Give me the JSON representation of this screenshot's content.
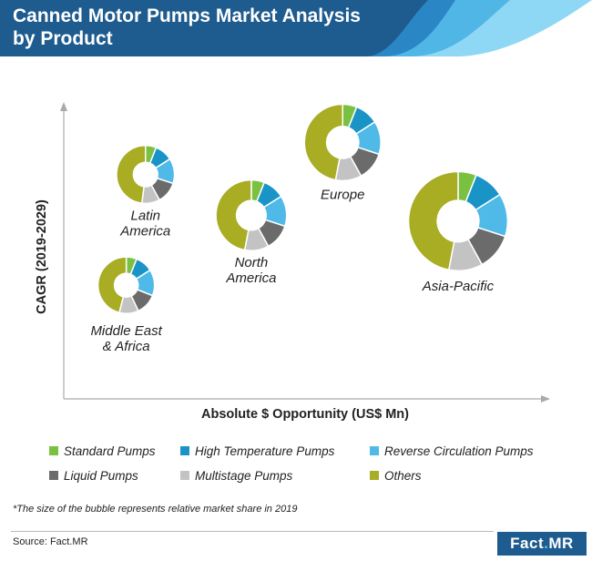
{
  "header": {
    "title_line1": "Canned Motor Pumps Market Analysis",
    "title_line2": "by Product"
  },
  "colors": {
    "banner": "#1e5b8e",
    "banner_accent_1": "#2a86c5",
    "banner_accent_2": "#4fb6e6",
    "banner_accent_3": "#8ed7f5"
  },
  "chart_data": {
    "type": "bubble-donut",
    "xlabel": "Absolute $ Opportunity (US$ Mn)",
    "ylabel": "CAGR (2019-2029)",
    "categories": [
      "Standard Pumps",
      "High Temperature Pumps",
      "Reverse Circulation Pumps",
      "Liquid Pumps",
      "Multistage Pumps",
      "Others"
    ],
    "category_colors": [
      "#7ac142",
      "#1a94c7",
      "#4fb9e8",
      "#6b6b6b",
      "#c3c3c3",
      "#a8ad24"
    ],
    "regions": [
      {
        "name": "Middle East & Africa",
        "label_lines": [
          "Middle East",
          "& Africa"
        ],
        "x": 1.3,
        "y": 3.9,
        "share": 0.09,
        "slices": [
          6,
          10,
          15,
          12,
          11,
          46
        ]
      },
      {
        "name": "Latin America",
        "label_lines": [
          "Latin",
          "America"
        ],
        "x": 1.7,
        "y": 7.7,
        "share": 0.1,
        "slices": [
          6,
          10,
          14,
          12,
          10,
          48
        ]
      },
      {
        "name": "North America",
        "label_lines": [
          "North",
          "America"
        ],
        "x": 3.9,
        "y": 6.3,
        "share": 0.19,
        "slices": [
          6,
          10,
          14,
          12,
          11,
          47
        ]
      },
      {
        "name": "Europe",
        "label_lines": [
          "Europe"
        ],
        "x": 5.8,
        "y": 8.8,
        "share": 0.23,
        "slices": [
          6,
          10,
          14,
          12,
          11,
          47
        ]
      },
      {
        "name": "Asia-Pacific",
        "label_lines": [
          "Asia-Pacific"
        ],
        "x": 8.2,
        "y": 6.1,
        "share": 0.39,
        "slices": [
          6,
          10,
          14,
          12,
          11,
          47
        ]
      }
    ]
  },
  "legend": {
    "items": [
      {
        "label": "Standard Pumps",
        "color": "#7ac142"
      },
      {
        "label": "High Temperature Pumps",
        "color": "#1a94c7"
      },
      {
        "label": "Reverse Circulation Pumps",
        "color": "#4fb9e8"
      },
      {
        "label": "Liquid Pumps",
        "color": "#6b6b6b"
      },
      {
        "label": "Multistage Pumps",
        "color": "#c3c3c3"
      },
      {
        "label": "Others",
        "color": "#a8ad24"
      }
    ]
  },
  "footnote": "*The size of the bubble represents relative market share in 2019",
  "source": "Source: Fact.MR",
  "logo": {
    "part1": "Fact",
    "dot": ".",
    "part2": "MR"
  }
}
